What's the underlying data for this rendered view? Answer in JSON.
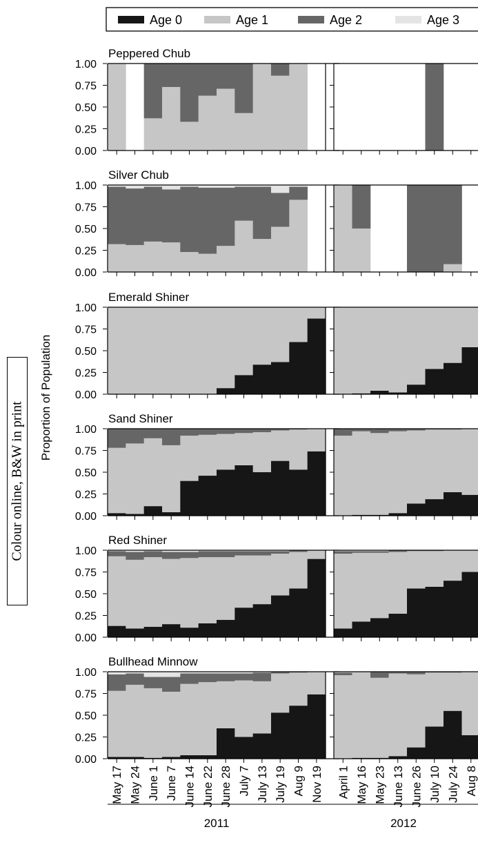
{
  "stamp_text": "Colour online, B&W in print",
  "colors": {
    "age0": "#161616",
    "age1": "#c6c6c6",
    "age2": "#666666",
    "age3": "#e4e4e4"
  },
  "chart_data": {
    "type": "bar",
    "stacked": true,
    "ylabel": "Proportion of Population",
    "ylim": [
      0,
      1
    ],
    "yticks": [
      "0.00",
      "0.25",
      "0.50",
      "0.75",
      "1.00"
    ],
    "legend": {
      "placement": "top",
      "entries": [
        "Age 0",
        "Age 1",
        "Age 2",
        "Age 3"
      ]
    },
    "years": [
      {
        "label": "2011",
        "dates": [
          "May 17",
          "May 24",
          "June 1",
          "June 7",
          "June 14",
          "June 22",
          "June 28",
          "July 7",
          "July 13",
          "July 19",
          "Aug 9",
          "Nov 19"
        ]
      },
      {
        "label": "2012",
        "dates": [
          "April 1",
          "May 16",
          "May 23",
          "June 13",
          "June 26",
          "July 10",
          "July 24",
          "Aug 8"
        ]
      }
    ],
    "species": [
      {
        "name": "Peppered Chub",
        "y2011": [
          [
            0,
            1,
            0,
            0
          ],
          [
            0,
            0,
            0,
            0
          ],
          [
            0,
            0.37,
            0.63,
            0
          ],
          [
            0,
            0.73,
            0.27,
            0
          ],
          [
            0,
            0.33,
            0.67,
            0
          ],
          [
            0,
            0.63,
            0.37,
            0
          ],
          [
            0,
            0.71,
            0.29,
            0
          ],
          [
            0,
            0.43,
            0.57,
            0
          ],
          [
            0,
            1,
            0,
            0
          ],
          [
            0,
            0.86,
            0.14,
            0
          ],
          [
            0,
            1,
            0,
            0
          ],
          [
            0,
            0,
            0,
            0
          ]
        ],
        "y2012": [
          [
            0,
            0,
            0,
            0
          ],
          [
            0,
            0,
            0,
            0
          ],
          [
            0,
            0,
            0,
            0
          ],
          [
            0,
            0,
            0,
            0
          ],
          [
            0,
            0,
            0,
            0
          ],
          [
            0,
            0,
            1,
            0
          ],
          [
            0,
            0,
            0,
            0
          ],
          [
            0,
            0,
            0,
            0
          ]
        ]
      },
      {
        "name": "Silver Chub",
        "y2011": [
          [
            0,
            0.32,
            0.66,
            0.02
          ],
          [
            0,
            0.31,
            0.65,
            0.04
          ],
          [
            0,
            0.35,
            0.63,
            0.02
          ],
          [
            0,
            0.34,
            0.61,
            0.05
          ],
          [
            0,
            0.23,
            0.75,
            0.02
          ],
          [
            0,
            0.21,
            0.76,
            0.03
          ],
          [
            0,
            0.3,
            0.67,
            0.03
          ],
          [
            0,
            0.59,
            0.39,
            0.02
          ],
          [
            0,
            0.38,
            0.6,
            0.02
          ],
          [
            0,
            0.52,
            0.39,
            0.09
          ],
          [
            0,
            0.83,
            0.15,
            0.02
          ],
          [
            0,
            0,
            0,
            0
          ]
        ],
        "y2012": [
          [
            0,
            1,
            0,
            0
          ],
          [
            0,
            0.5,
            0.5,
            0
          ],
          [
            0,
            0,
            0,
            0
          ],
          [
            0,
            0,
            0,
            0
          ],
          [
            0,
            0,
            1,
            0
          ],
          [
            0,
            0,
            1,
            0
          ],
          [
            0,
            0.09,
            0.91,
            0
          ],
          [
            0,
            0,
            0,
            0
          ]
        ]
      },
      {
        "name": "Emerald Shiner",
        "y2011": [
          [
            0,
            1,
            0,
            0
          ],
          [
            0,
            1,
            0,
            0
          ],
          [
            0,
            1,
            0,
            0
          ],
          [
            0,
            1,
            0,
            0
          ],
          [
            0,
            1,
            0,
            0
          ],
          [
            0,
            1,
            0,
            0
          ],
          [
            0.07,
            0.93,
            0,
            0
          ],
          [
            0.22,
            0.78,
            0,
            0
          ],
          [
            0.34,
            0.66,
            0,
            0
          ],
          [
            0.37,
            0.63,
            0,
            0
          ],
          [
            0.6,
            0.4,
            0,
            0
          ],
          [
            0.87,
            0.13,
            0,
            0
          ]
        ],
        "y2012": [
          [
            0,
            1,
            0,
            0
          ],
          [
            0.01,
            0.99,
            0,
            0
          ],
          [
            0.04,
            0.96,
            0,
            0
          ],
          [
            0.02,
            0.98,
            0,
            0
          ],
          [
            0.11,
            0.89,
            0,
            0
          ],
          [
            0.29,
            0.71,
            0,
            0
          ],
          [
            0.36,
            0.64,
            0,
            0
          ],
          [
            0.54,
            0.46,
            0,
            0
          ]
        ]
      },
      {
        "name": "Sand Shiner",
        "y2011": [
          [
            0.03,
            0.75,
            0.22,
            0
          ],
          [
            0.02,
            0.81,
            0.17,
            0
          ],
          [
            0.11,
            0.78,
            0.11,
            0
          ],
          [
            0.04,
            0.77,
            0.19,
            0
          ],
          [
            0.4,
            0.52,
            0.08,
            0
          ],
          [
            0.46,
            0.47,
            0.07,
            0
          ],
          [
            0.53,
            0.41,
            0.06,
            0
          ],
          [
            0.58,
            0.37,
            0.05,
            0
          ],
          [
            0.5,
            0.46,
            0.04,
            0
          ],
          [
            0.63,
            0.35,
            0.02,
            0
          ],
          [
            0.53,
            0.46,
            0.01,
            0
          ],
          [
            0.74,
            0.26,
            0,
            0
          ]
        ],
        "y2012": [
          [
            0,
            0.92,
            0.08,
            0
          ],
          [
            0.01,
            0.96,
            0.03,
            0
          ],
          [
            0.01,
            0.94,
            0.05,
            0
          ],
          [
            0.03,
            0.94,
            0.03,
            0
          ],
          [
            0.14,
            0.84,
            0.02,
            0
          ],
          [
            0.19,
            0.8,
            0.01,
            0
          ],
          [
            0.27,
            0.72,
            0.01,
            0
          ],
          [
            0.24,
            0.76,
            0,
            0
          ]
        ]
      },
      {
        "name": "Red Shiner",
        "y2011": [
          [
            0.13,
            0.8,
            0.06,
            0.01
          ],
          [
            0.1,
            0.79,
            0.09,
            0.02
          ],
          [
            0.12,
            0.8,
            0.07,
            0.01
          ],
          [
            0.15,
            0.75,
            0.08,
            0.02
          ],
          [
            0.11,
            0.8,
            0.07,
            0.02
          ],
          [
            0.16,
            0.76,
            0.07,
            0.01
          ],
          [
            0.2,
            0.72,
            0.07,
            0.01
          ],
          [
            0.34,
            0.6,
            0.05,
            0.01
          ],
          [
            0.38,
            0.56,
            0.05,
            0.01
          ],
          [
            0.48,
            0.48,
            0.03,
            0.01
          ],
          [
            0.56,
            0.42,
            0.02,
            0
          ],
          [
            0.9,
            0.1,
            0,
            0
          ]
        ],
        "y2012": [
          [
            0.1,
            0.86,
            0.03,
            0.01
          ],
          [
            0.18,
            0.79,
            0.02,
            0.01
          ],
          [
            0.22,
            0.75,
            0.02,
            0.01
          ],
          [
            0.27,
            0.71,
            0.02,
            0
          ],
          [
            0.56,
            0.43,
            0.01,
            0
          ],
          [
            0.58,
            0.41,
            0.01,
            0
          ],
          [
            0.65,
            0.35,
            0,
            0
          ],
          [
            0.75,
            0.25,
            0,
            0
          ]
        ]
      },
      {
        "name": "Bullhead Minnow",
        "y2011": [
          [
            0.02,
            0.76,
            0.19,
            0.03
          ],
          [
            0.02,
            0.83,
            0.13,
            0.02
          ],
          [
            0.01,
            0.8,
            0.13,
            0.06
          ],
          [
            0.02,
            0.75,
            0.17,
            0.06
          ],
          [
            0.04,
            0.82,
            0.12,
            0.02
          ],
          [
            0.04,
            0.84,
            0.1,
            0.02
          ],
          [
            0.35,
            0.54,
            0.09,
            0.02
          ],
          [
            0.25,
            0.65,
            0.08,
            0.02
          ],
          [
            0.29,
            0.6,
            0.1,
            0.01
          ],
          [
            0.53,
            0.45,
            0.02,
            0
          ],
          [
            0.61,
            0.38,
            0.01,
            0
          ],
          [
            0.74,
            0.26,
            0,
            0
          ]
        ],
        "y2012": [
          [
            0,
            0.96,
            0.03,
            0.01
          ],
          [
            0.01,
            0.99,
            0,
            0
          ],
          [
            0.01,
            0.92,
            0.07,
            0
          ],
          [
            0.03,
            0.95,
            0.02,
            0
          ],
          [
            0.13,
            0.84,
            0.03,
            0
          ],
          [
            0.37,
            0.62,
            0.01,
            0
          ],
          [
            0.55,
            0.44,
            0.01,
            0
          ],
          [
            0.27,
            0.73,
            0,
            0
          ]
        ]
      }
    ]
  }
}
